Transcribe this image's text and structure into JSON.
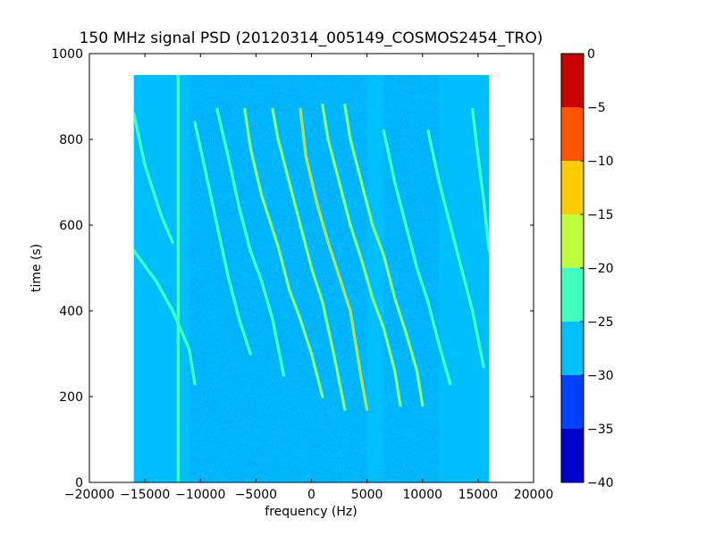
{
  "chart_data": {
    "type": "heatmap",
    "title": "150 MHz signal PSD (20120314_005149_COSMOS2454_TRO)",
    "xlabel": "frequency (Hz)",
    "ylabel": "time (s)",
    "xlim": [
      -20000,
      20000
    ],
    "ylim": [
      0,
      1000
    ],
    "xticks": [
      -20000,
      -15000,
      -10000,
      -5000,
      0,
      5000,
      10000,
      15000,
      20000
    ],
    "xtick_labels": [
      "−20000",
      "−15000",
      "−10000",
      "−5000",
      "0",
      "5000",
      "10000",
      "15000",
      "20000"
    ],
    "yticks": [
      0,
      200,
      400,
      600,
      800,
      1000
    ],
    "ytick_labels": [
      "0",
      "200",
      "400",
      "600",
      "800",
      "1000"
    ],
    "data_extent": {
      "x": [
        -16000,
        16000
      ],
      "y": [
        0,
        950
      ]
    },
    "background_level": -28,
    "colorbar": {
      "levels": [
        -40,
        -35,
        -30,
        -25,
        -20,
        -15,
        -10,
        -5,
        0
      ],
      "tick_labels": [
        "−40",
        "−35",
        "−30",
        "−25",
        "−20",
        "−15",
        "−10",
        "−5",
        "0"
      ],
      "colors": [
        "#0000cd",
        "#0040ff",
        "#00bfff",
        "#40ffbf",
        "#bfff40",
        "#ffcc00",
        "#ff5500",
        "#cc0000"
      ]
    },
    "noise_bands": [
      {
        "x_range": [
          -11000,
          5000
        ],
        "level": -32
      },
      {
        "x_range": [
          6500,
          11500
        ],
        "level": -34
      }
    ],
    "series": [
      {
        "points": [
          [
            -16000,
            540
          ],
          [
            -14000,
            470
          ],
          [
            -12500,
            400
          ],
          [
            -11000,
            310
          ],
          [
            -10500,
            230
          ]
        ],
        "level": -23
      },
      {
        "points": [
          [
            -16000,
            860
          ],
          [
            -15000,
            740
          ],
          [
            -13500,
            620
          ],
          [
            -12500,
            560
          ]
        ],
        "level": -24
      },
      {
        "points": [
          [
            -10500,
            840
          ],
          [
            -9500,
            720
          ],
          [
            -8500,
            600
          ],
          [
            -7500,
            480
          ],
          [
            -6500,
            380
          ],
          [
            -5500,
            300
          ]
        ],
        "level": -24
      },
      {
        "points": [
          [
            -8500,
            870
          ],
          [
            -7500,
            760
          ],
          [
            -6500,
            640
          ],
          [
            -5500,
            540
          ],
          [
            -4500,
            470
          ],
          [
            -3500,
            380
          ],
          [
            -2500,
            250
          ]
        ],
        "level": -22
      },
      {
        "points": [
          [
            -6000,
            870
          ],
          [
            -5500,
            780
          ],
          [
            -4500,
            670
          ],
          [
            -3000,
            550
          ],
          [
            -2000,
            450
          ],
          [
            -1000,
            380
          ],
          [
            0,
            300
          ],
          [
            1000,
            200
          ]
        ],
        "level": -19
      },
      {
        "points": [
          [
            -3500,
            870
          ],
          [
            -3000,
            800
          ],
          [
            -2000,
            700
          ],
          [
            -1000,
            600
          ],
          [
            0,
            500
          ],
          [
            1000,
            420
          ],
          [
            2000,
            300
          ],
          [
            3000,
            170
          ]
        ],
        "level": -18
      },
      {
        "points": [
          [
            -1000,
            870
          ],
          [
            -500,
            760
          ],
          [
            500,
            650
          ],
          [
            1500,
            560
          ],
          [
            2500,
            480
          ],
          [
            3500,
            400
          ],
          [
            4000,
            320
          ],
          [
            4500,
            240
          ],
          [
            5000,
            170
          ]
        ],
        "level": -12
      },
      {
        "points": [
          [
            1000,
            880
          ],
          [
            1500,
            800
          ],
          [
            2500,
            700
          ],
          [
            3500,
            600
          ],
          [
            4500,
            520
          ],
          [
            5500,
            430
          ],
          [
            6500,
            360
          ],
          [
            7500,
            260
          ],
          [
            8000,
            180
          ]
        ],
        "level": -16
      },
      {
        "points": [
          [
            3000,
            880
          ],
          [
            3500,
            800
          ],
          [
            4500,
            700
          ],
          [
            5500,
            600
          ],
          [
            6500,
            530
          ],
          [
            7500,
            430
          ],
          [
            8500,
            350
          ],
          [
            9500,
            260
          ],
          [
            10000,
            180
          ]
        ],
        "level": -17
      },
      {
        "points": [
          [
            6500,
            820
          ],
          [
            7500,
            700
          ],
          [
            8500,
            600
          ],
          [
            9500,
            500
          ],
          [
            10500,
            420
          ],
          [
            11500,
            320
          ],
          [
            12500,
            230
          ]
        ],
        "level": -22
      },
      {
        "points": [
          [
            10500,
            820
          ],
          [
            11500,
            700
          ],
          [
            12500,
            600
          ],
          [
            13500,
            500
          ],
          [
            14500,
            400
          ],
          [
            15500,
            270
          ]
        ],
        "level": -23
      },
      {
        "points": [
          [
            14500,
            870
          ],
          [
            15000,
            760
          ],
          [
            15500,
            660
          ],
          [
            16000,
            540
          ]
        ],
        "level": -24
      },
      {
        "points": [
          [
            -12000,
            950
          ],
          [
            -12000,
            0
          ]
        ],
        "level": -24
      }
    ]
  }
}
